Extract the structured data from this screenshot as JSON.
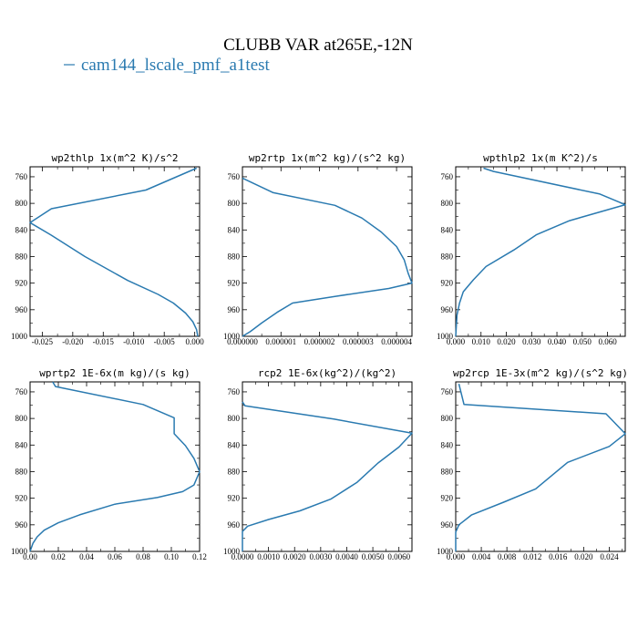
{
  "figure": {
    "title": "CLUBB VAR at265E,-12N",
    "legend_label": "cam144_lscale_pmf_a1test",
    "line_color": "#2a7ab0"
  },
  "chart_data": [
    {
      "type": "line",
      "title": "wp2thlp  1x(m^2 K)/s^2",
      "xlim": [
        -0.027,
        0.0008
      ],
      "ylim": [
        1000,
        745
      ],
      "xticks": [
        -0.025,
        -0.02,
        -0.015,
        -0.01,
        -0.005,
        0.0
      ],
      "xtick_labels": [
        "-0.025",
        "-0.020",
        "-0.015",
        "-0.010",
        "-0.005",
        "0.000"
      ],
      "yticks": [
        760,
        800,
        840,
        880,
        920,
        960,
        1000
      ],
      "ytick_labels": [
        "760",
        "800",
        "840",
        "880",
        "920",
        "960",
        "1000"
      ],
      "series": [
        {
          "x": [
            0.0003,
            -0.008,
            -0.0235,
            -0.027,
            -0.0235,
            -0.018,
            -0.011,
            -0.006,
            -0.0035,
            -0.0015,
            -0.0003,
            0.0003,
            0.0005
          ],
          "y": [
            747,
            780,
            808,
            829,
            848,
            880,
            916,
            937,
            950,
            965,
            978,
            990,
            1000
          ]
        }
      ]
    },
    {
      "type": "line",
      "title": "wp2rtp  1x(m^2 kg)/(s^2 kg)",
      "xlim": [
        0.0,
        4.4e-06
      ],
      "ylim": [
        1000,
        745
      ],
      "xticks": [
        0.0,
        1e-06,
        2e-06,
        3e-06,
        4e-06
      ],
      "xtick_labels": [
        "0.000000",
        "0.000001",
        "0.000002",
        "0.000003",
        "0.000004"
      ],
      "yticks": [
        760,
        800,
        840,
        880,
        920,
        960,
        1000
      ],
      "ytick_labels": [
        "760",
        "800",
        "840",
        "880",
        "920",
        "960",
        "1000"
      ],
      "series": [
        {
          "x": [
            0.0,
            8e-07,
            2.4e-06,
            3.1e-06,
            3.6e-06,
            4e-06,
            4.2e-06,
            4.3e-06,
            4.4e-06,
            3.8e-06,
            2.4e-06,
            1.3e-06,
            9e-07,
            5e-07,
            2e-07,
            0.0
          ],
          "y": [
            762,
            784,
            803,
            822,
            843,
            865,
            885,
            905,
            920,
            928,
            940,
            950,
            964,
            980,
            993,
            1000
          ]
        }
      ]
    },
    {
      "type": "line",
      "title": "wpthlp2  1x(m K^2)/s",
      "xlim": [
        0.0,
        0.067
      ],
      "ylim": [
        1000,
        745
      ],
      "xticks": [
        0.0,
        0.01,
        0.02,
        0.03,
        0.04,
        0.05,
        0.06
      ],
      "xtick_labels": [
        "0.000",
        "0.010",
        "0.020",
        "0.030",
        "0.040",
        "0.050",
        "0.060"
      ],
      "yticks": [
        760,
        800,
        840,
        880,
        920,
        960,
        1000
      ],
      "ytick_labels": [
        "760",
        "800",
        "840",
        "880",
        "920",
        "960",
        "1000"
      ],
      "series": [
        {
          "x": [
            0.011,
            0.015,
            0.057,
            0.067,
            0.045,
            0.032,
            0.023,
            0.012,
            0.007,
            0.003,
            0.0015,
            0.0005,
            0.0
          ],
          "y": [
            747,
            752,
            786,
            802,
            826,
            847,
            870,
            895,
            915,
            933,
            950,
            968,
            1000
          ]
        }
      ]
    },
    {
      "type": "line",
      "title": "wprtp2  1E-6x(m kg)/(s kg)",
      "xlim": [
        0.0,
        0.12
      ],
      "ylim": [
        1000,
        745
      ],
      "xticks": [
        0.0,
        0.02,
        0.04,
        0.06,
        0.08,
        0.1,
        0.12
      ],
      "xtick_labels": [
        "0.00",
        "0.02",
        "0.04",
        "0.06",
        "0.08",
        "0.10",
        "0.12"
      ],
      "yticks": [
        760,
        800,
        840,
        880,
        920,
        960,
        1000
      ],
      "ytick_labels": [
        "760",
        "800",
        "840",
        "880",
        "920",
        "960",
        "1000"
      ],
      "series": [
        {
          "x": [
            0.016,
            0.018,
            0.08,
            0.102,
            0.102,
            0.11,
            0.116,
            0.12,
            0.116,
            0.108,
            0.09,
            0.06,
            0.035,
            0.02,
            0.01,
            0.005,
            0.002,
            0.0
          ],
          "y": [
            745,
            752,
            779,
            799,
            823,
            841,
            860,
            880,
            900,
            910,
            919,
            929,
            945,
            957,
            968,
            978,
            988,
            1000
          ]
        }
      ]
    },
    {
      "type": "line",
      "title": "rcp2  1E-6x(kg^2)/(kg^2)",
      "xlim": [
        0.0,
        0.0065
      ],
      "ylim": [
        1000,
        745
      ],
      "xticks": [
        0.0,
        0.001,
        0.002,
        0.003,
        0.004,
        0.005,
        0.006
      ],
      "xtick_labels": [
        "0.0000",
        "0.0010",
        "0.0020",
        "0.0030",
        "0.0040",
        "0.0050",
        "0.0060"
      ],
      "yticks": [
        760,
        800,
        840,
        880,
        920,
        960,
        1000
      ],
      "ytick_labels": [
        "760",
        "800",
        "840",
        "880",
        "920",
        "960",
        "1000"
      ],
      "series": [
        {
          "x": [
            0.0,
            0.0001,
            0.0035,
            0.0065,
            0.006,
            0.0052,
            0.0044,
            0.0034,
            0.0022,
            0.001,
            0.0002,
            0.0,
            0.0
          ],
          "y": [
            775,
            781,
            801,
            822,
            843,
            867,
            896,
            921,
            939,
            952,
            962,
            970,
            1000
          ]
        }
      ]
    },
    {
      "type": "line",
      "title": "wp2rcp  1E-3x(m^2 kg)/(s^2 kg)",
      "xlim": [
        0.0,
        0.0265
      ],
      "ylim": [
        1000,
        745
      ],
      "xticks": [
        0.0,
        0.004,
        0.008,
        0.012,
        0.016,
        0.02,
        0.024
      ],
      "xtick_labels": [
        "0.000",
        "0.004",
        "0.008",
        "0.012",
        "0.016",
        "0.020",
        "0.024"
      ],
      "yticks": [
        760,
        800,
        840,
        880,
        920,
        960,
        1000
      ],
      "ytick_labels": [
        "760",
        "800",
        "840",
        "880",
        "920",
        "960",
        "1000"
      ],
      "series": [
        {
          "x": [
            0.0005,
            0.0013,
            0.0235,
            0.0265,
            0.024,
            0.0175,
            0.0125,
            0.0075,
            0.0025,
            0.0005,
            0.0,
            0.0
          ],
          "y": [
            748,
            779,
            793,
            823,
            842,
            866,
            906,
            926,
            945,
            960,
            971,
            1000
          ]
        }
      ]
    }
  ]
}
